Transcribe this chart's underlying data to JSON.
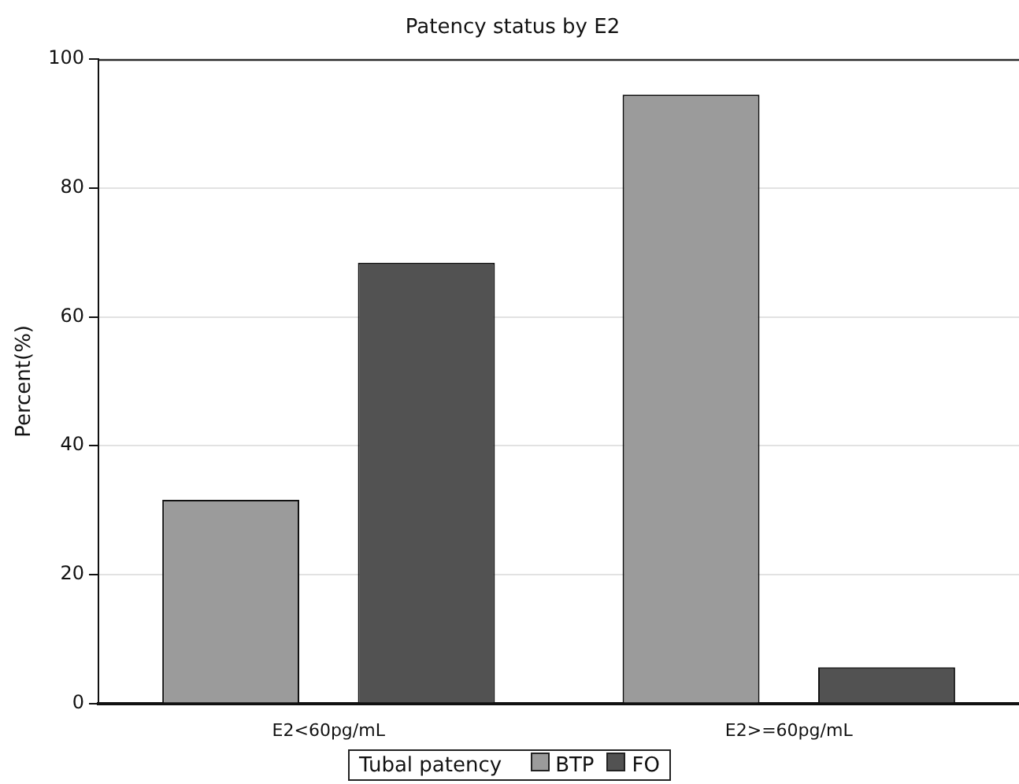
{
  "chart_data": {
    "type": "bar",
    "title": "Patency status by E2",
    "ylabel": "Percent(%)",
    "legend_title": "Tubal patency",
    "categories": [
      "E2<60pg/mL",
      "E2>=60pg/mL"
    ],
    "series": [
      {
        "name": "BTP",
        "color": "#9b9b9b",
        "values": [
          31.6,
          94.5
        ]
      },
      {
        "name": "FO",
        "color": "#525252",
        "values": [
          68.4,
          5.6
        ]
      }
    ],
    "ylim": [
      0,
      100
    ],
    "yticks": [
      0,
      20,
      40,
      60,
      80,
      100
    ],
    "grid": "y",
    "legend": "bottom"
  }
}
